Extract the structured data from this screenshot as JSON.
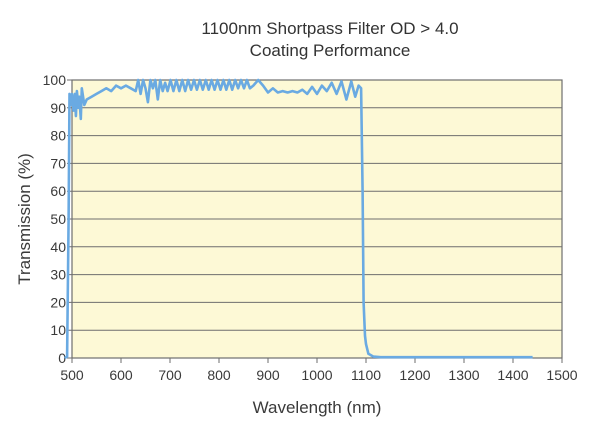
{
  "chart_data": {
    "type": "line",
    "title": "1100nm Shortpass Filter OD > 4.0",
    "subtitle": "Coating Performance",
    "xlabel": "Wavelength (nm)",
    "ylabel": "Transmission (%)",
    "xlim": [
      500,
      1500
    ],
    "ylim": [
      0,
      100
    ],
    "xticks": [
      500,
      600,
      700,
      800,
      900,
      1000,
      1100,
      1200,
      1300,
      1400,
      1500
    ],
    "yticks": [
      0,
      10,
      20,
      30,
      40,
      50,
      60,
      70,
      80,
      90,
      100
    ],
    "grid": "horizontal",
    "colors": {
      "line": "#6aaae2",
      "plot_background": "#fdf9d6",
      "grid": "#6e6e6e"
    },
    "series": [
      {
        "x": [
          485,
          490,
          493,
          495,
          498,
          500,
          503,
          506,
          508,
          510,
          513,
          515,
          518,
          520,
          525,
          530,
          540,
          550,
          560,
          570,
          580,
          590,
          600,
          610,
          620,
          630,
          635,
          640,
          645,
          650,
          655,
          660,
          665,
          670,
          675,
          680,
          685,
          690,
          695,
          701,
          707,
          713,
          719,
          725,
          731,
          737,
          743,
          749,
          755,
          761,
          767,
          773,
          779,
          785,
          791,
          797,
          803,
          809,
          815,
          821,
          827,
          833,
          839,
          845,
          851,
          857,
          863,
          870,
          880,
          890,
          900,
          910,
          920,
          930,
          940,
          950,
          960,
          970,
          980,
          990,
          1000,
          1010,
          1020,
          1030,
          1040,
          1050,
          1060,
          1070,
          1078,
          1085,
          1090,
          1093,
          1095,
          1098,
          1100,
          1105,
          1115,
          1130,
          1200,
          1300,
          1440
        ],
        "y": [
          0,
          0.5,
          50,
          95,
          91,
          95,
          89,
          95,
          87,
          96,
          90,
          94,
          86,
          97,
          91,
          93,
          94,
          95,
          96,
          97,
          96,
          98,
          97,
          98,
          97,
          96,
          100,
          95,
          100,
          97,
          92,
          100,
          97,
          100,
          93,
          100,
          96,
          99,
          96,
          100,
          96,
          100,
          96,
          100,
          96,
          100,
          96.5,
          100,
          96.5,
          100,
          96.5,
          100,
          96.5,
          100,
          96.5,
          100,
          96.5,
          100,
          96.5,
          100,
          96.5,
          100,
          97,
          100,
          97,
          100,
          97,
          98,
          100,
          98,
          95.5,
          97,
          95.5,
          96,
          95.5,
          96,
          95.5,
          96.5,
          95,
          97.5,
          95,
          98,
          96,
          99,
          95,
          99.5,
          93,
          99.5,
          94,
          98,
          97,
          60,
          20,
          8,
          5,
          1.5,
          0.5,
          0.3,
          0.3,
          0.3,
          0.3
        ]
      }
    ]
  }
}
